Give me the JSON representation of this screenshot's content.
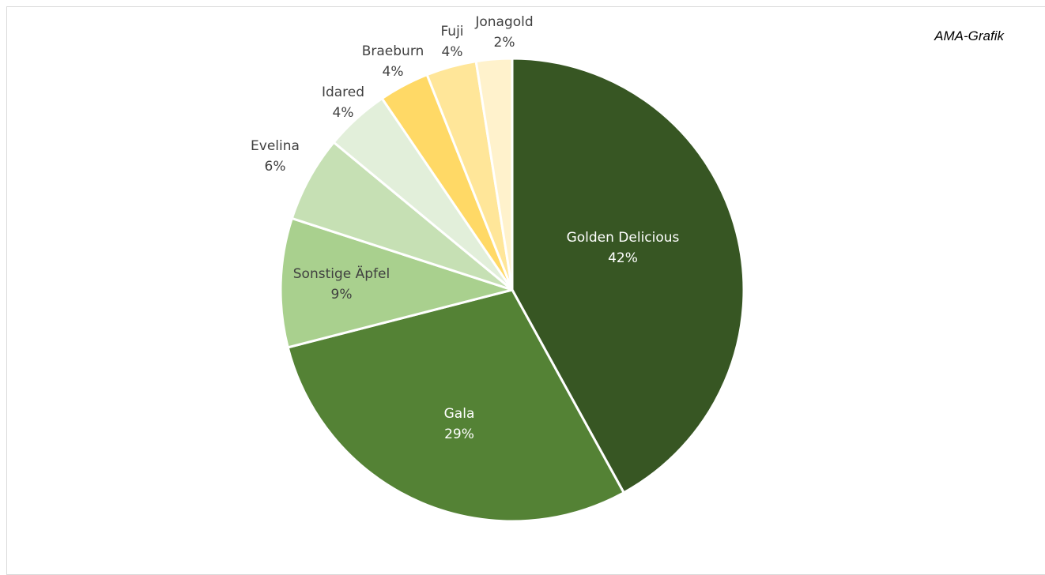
{
  "credit": "AMA-Grafik",
  "colors": {
    "label_dark": "#404040",
    "label_light": "#ffffff",
    "slice_border": "#ffffff"
  },
  "chart_data": {
    "type": "pie",
    "start_angle_deg": 0,
    "direction": "clockwise",
    "slices": [
      {
        "name": "Golden Delicious",
        "value": 42,
        "value_label": "42%",
        "color": "#375623",
        "label_color": "#ffffff",
        "label_inside": true
      },
      {
        "name": "Gala",
        "value": 29,
        "value_label": "29%",
        "color": "#548235",
        "label_color": "#ffffff",
        "label_inside": true
      },
      {
        "name": "Sonstige Äpfel",
        "value": 9,
        "value_label": "9%",
        "color": "#a9d08e",
        "label_color": "#404040",
        "label_inside": true
      },
      {
        "name": "Evelina",
        "value": 6,
        "value_label": "6%",
        "color": "#c6e0b4",
        "label_color": "#404040",
        "label_inside": false
      },
      {
        "name": "Idared",
        "value": 4.5,
        "value_label": "4%",
        "color": "#e2efda",
        "label_color": "#404040",
        "label_inside": false
      },
      {
        "name": "Braeburn",
        "value": 3.5,
        "value_label": "4%",
        "color": "#ffd966",
        "label_color": "#404040",
        "label_inside": false
      },
      {
        "name": "Fuji",
        "value": 3.5,
        "value_label": "4%",
        "color": "#ffe699",
        "label_color": "#404040",
        "label_inside": false
      },
      {
        "name": "Jonagold",
        "value": 2.5,
        "value_label": "2%",
        "color": "#fff2cc",
        "label_color": "#404040",
        "label_inside": false
      }
    ]
  }
}
